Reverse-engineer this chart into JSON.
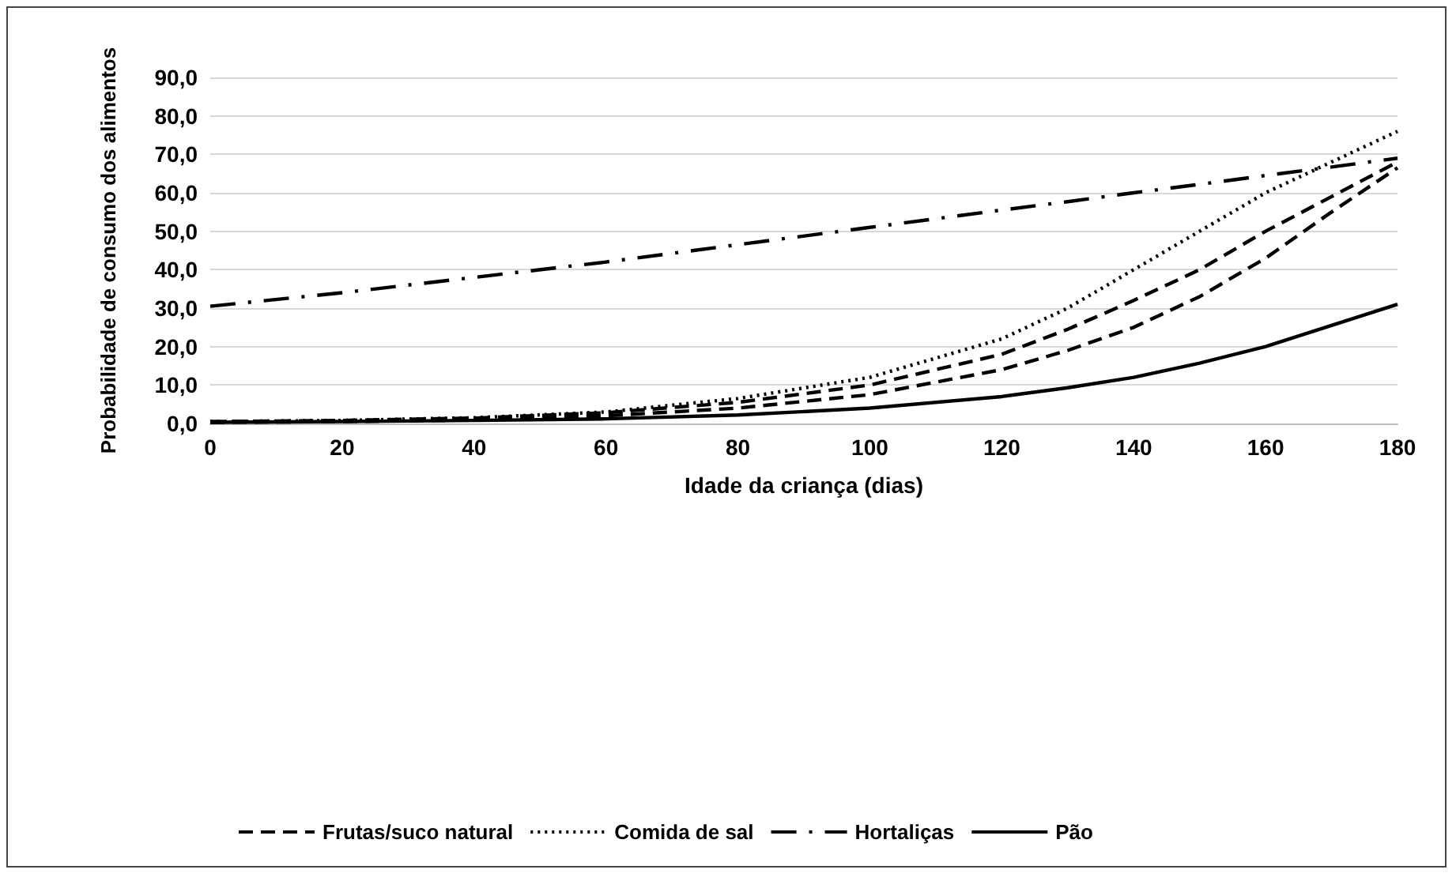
{
  "chart_data": {
    "type": "line",
    "xlabel": "Idade da criança (dias)",
    "ylabel": "Probabilidade de consumo dos alimentos",
    "x": [
      0,
      20,
      40,
      60,
      80,
      100,
      120,
      130,
      140,
      150,
      160,
      170,
      180
    ],
    "series": [
      {
        "name": "Frutas/suco natural",
        "color": "#000000",
        "line_style": "dashed",
        "values": [
          0.5,
          0.8,
          1.4,
          2.8,
          5.5,
          10,
          18,
          24.5,
          32,
          40,
          50,
          59,
          68
        ]
      },
      {
        "name": "Comida de sal",
        "color": "#000000",
        "line_style": "dotted",
        "values": [
          0.5,
          0.8,
          1.5,
          3,
          6.5,
          12,
          22,
          30,
          40,
          50,
          60,
          68,
          76
        ]
      },
      {
        "name": "Hortaliças",
        "color": "#000000",
        "line_style": "dashdot",
        "values": [
          30.5,
          34,
          38,
          42,
          46.5,
          51,
          55.5,
          57.7,
          60,
          62.2,
          64.5,
          66.7,
          69
        ]
      },
      {
        "name": "Pão",
        "color": "#000000",
        "line_style": "solid",
        "values": [
          0.3,
          0.5,
          0.8,
          1.2,
          2.2,
          4,
          7,
          9.3,
          12,
          15.7,
          20,
          25.5,
          31
        ]
      },
      {
        "color": "#000000",
        "line_style": "dashed",
        "values": [
          0.3,
          0.5,
          0.9,
          2,
          4,
          7.5,
          14,
          19,
          25,
          33,
          43,
          55,
          66.5
        ]
      }
    ],
    "xlim": [
      0,
      180
    ],
    "xticks": [
      0,
      20,
      40,
      60,
      80,
      100,
      120,
      140,
      160,
      180
    ],
    "ylim": [
      0,
      90
    ],
    "yticks": [
      {
        "value": 0,
        "label": "0,0"
      },
      {
        "value": 10,
        "label": "10,0"
      },
      {
        "value": 20,
        "label": "20,0"
      },
      {
        "value": 30,
        "label": "30,0"
      },
      {
        "value": 40,
        "label": "40,0"
      },
      {
        "value": 50,
        "label": "50,0"
      },
      {
        "value": 60,
        "label": "60,0"
      },
      {
        "value": 70,
        "label": "70,0"
      },
      {
        "value": 80,
        "label": "80,0"
      },
      {
        "value": 90,
        "label": "90,0"
      }
    ],
    "grid": "y",
    "legend": "bottom",
    "marker": "none"
  }
}
